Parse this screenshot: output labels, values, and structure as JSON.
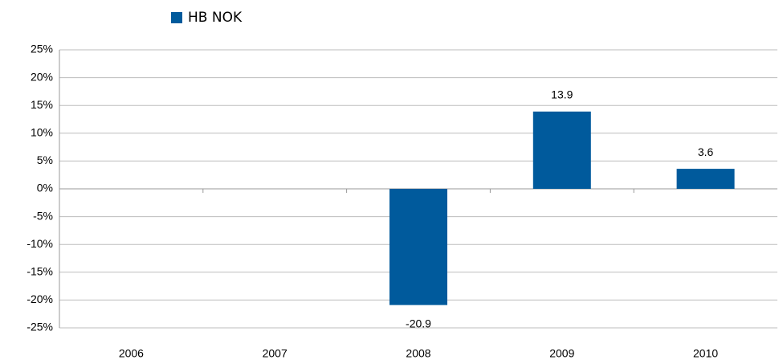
{
  "chart_data": {
    "type": "bar",
    "categories": [
      "2006",
      "2007",
      "2008",
      "2009",
      "2010"
    ],
    "series": [
      {
        "name": "HB NOK",
        "color": "#005a9c",
        "values": [
          null,
          null,
          -20.9,
          13.9,
          3.6
        ]
      }
    ],
    "ylim": [
      -25,
      25
    ],
    "yticks": [
      {
        "value": -25,
        "label": "-25%"
      },
      {
        "value": -20,
        "label": "-20%"
      },
      {
        "value": -15,
        "label": "-15%"
      },
      {
        "value": -10,
        "label": "-10%"
      },
      {
        "value": -5,
        "label": "-5%"
      },
      {
        "value": 0,
        "label": "0%"
      },
      {
        "value": 5,
        "label": "5%"
      },
      {
        "value": 10,
        "label": "10%"
      },
      {
        "value": 15,
        "label": "15%"
      },
      {
        "value": 20,
        "label": "20%"
      },
      {
        "value": 25,
        "label": "25%"
      }
    ],
    "grid": true,
    "legend": "top"
  }
}
